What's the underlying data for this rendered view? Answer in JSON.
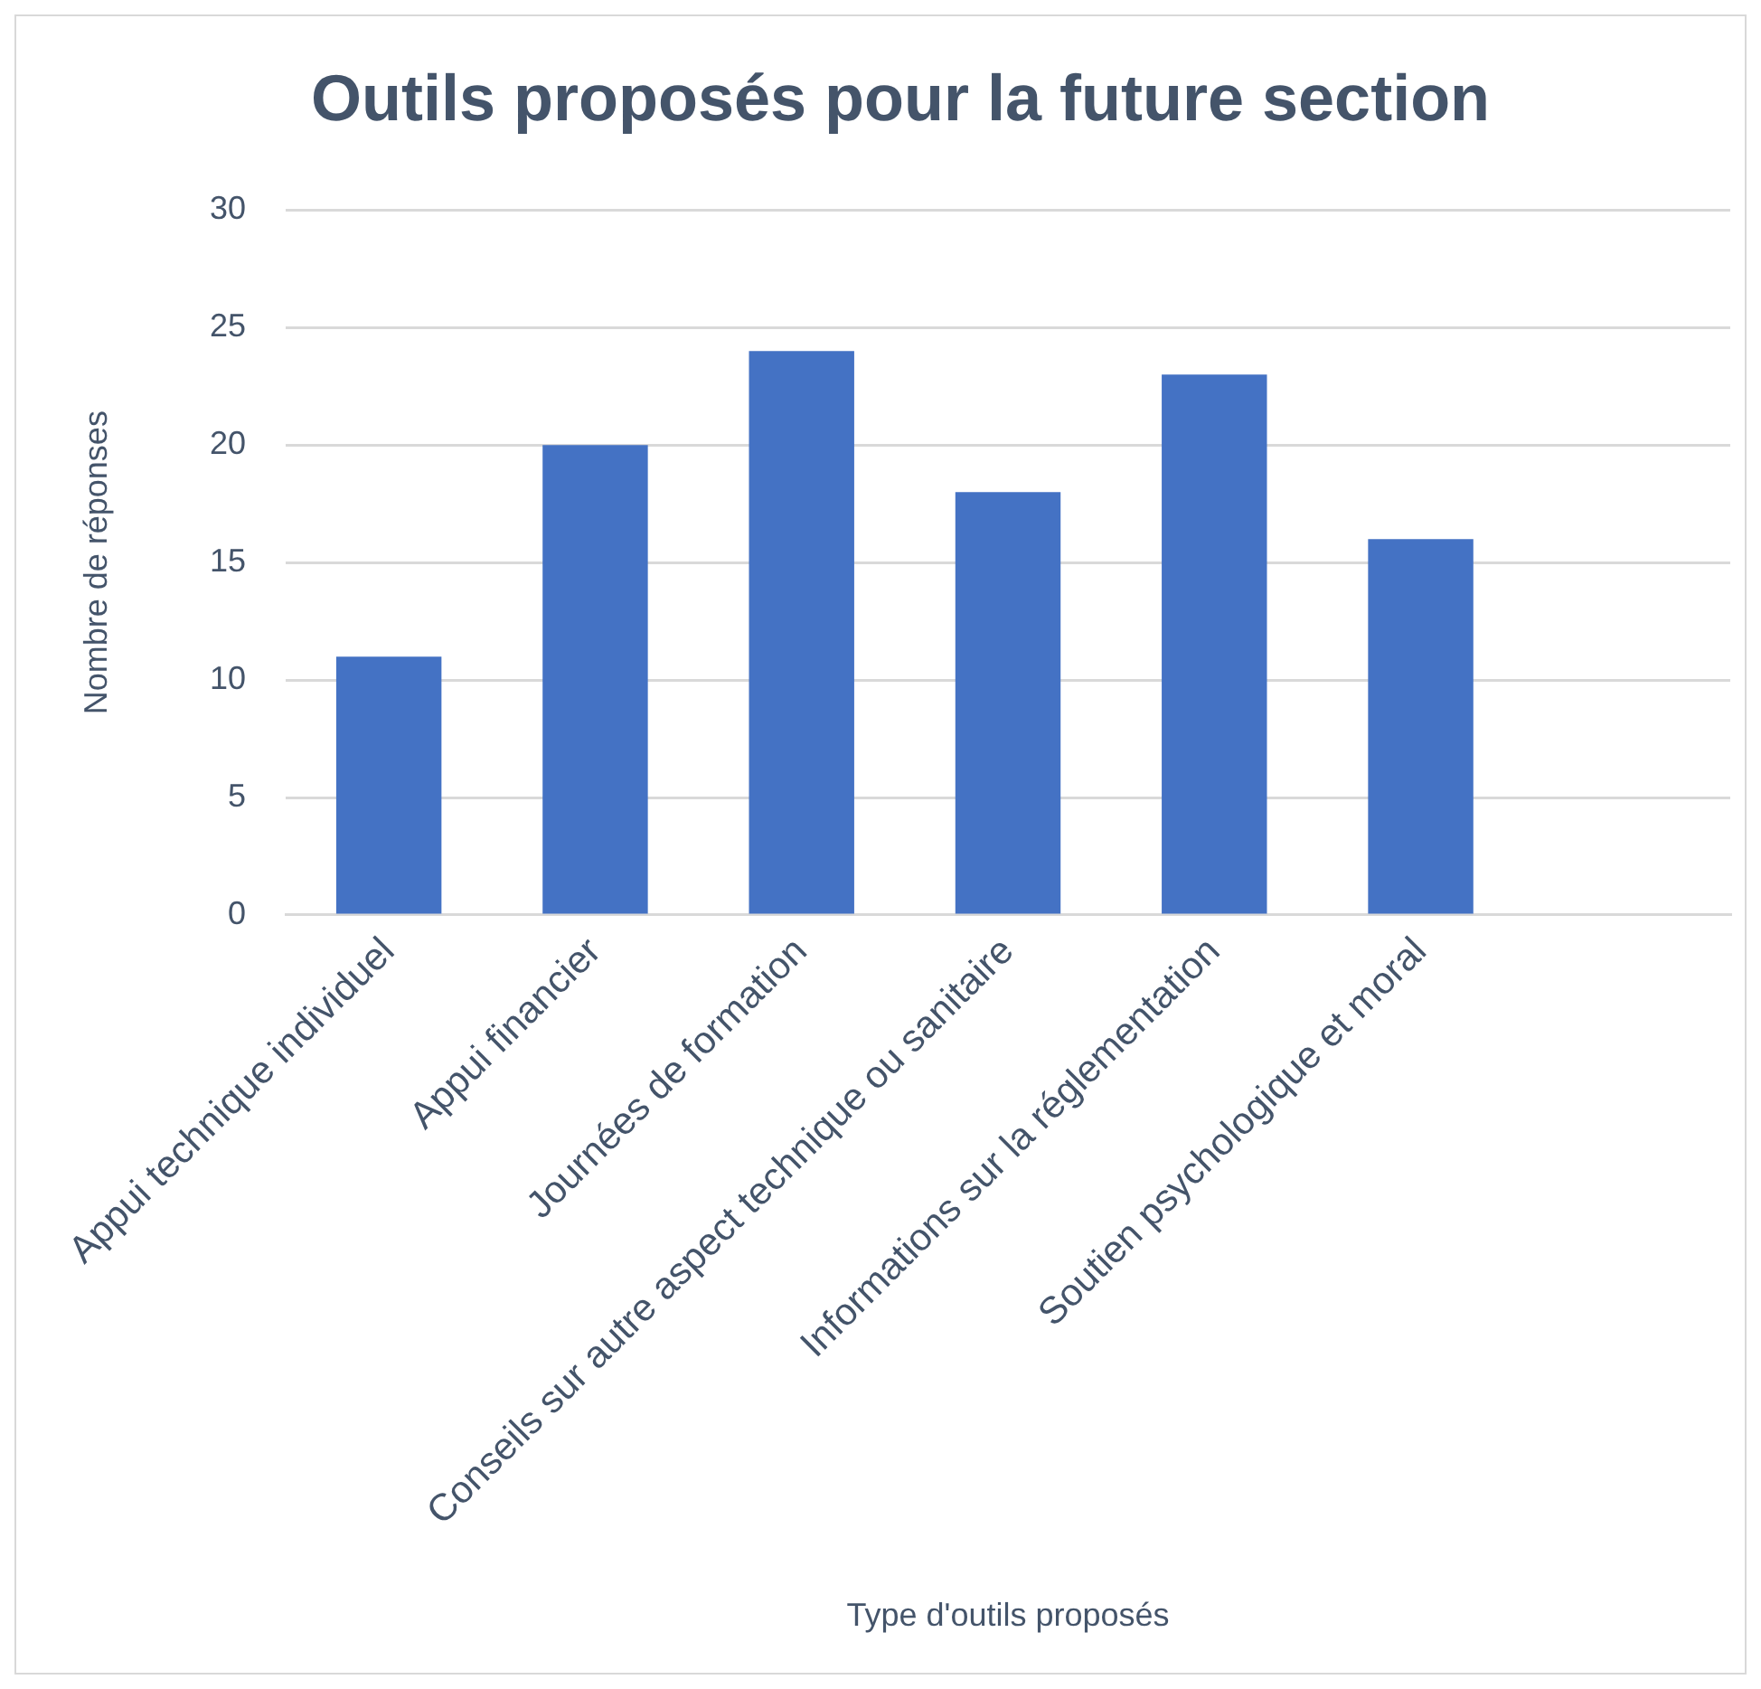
{
  "chart_data": {
    "type": "bar",
    "title": "Outils proposés pour la future section",
    "xlabel": "Type d'outils proposés",
    "ylabel": "Nombre de réponses",
    "categories": [
      "Appui technique individuel",
      "Appui financier",
      "Journées de formation",
      "Conseils sur autre aspect technique ou sanitaire",
      "Informations sur la réglementation",
      "Soutien psychologique et moral",
      null
    ],
    "values": [
      11,
      20,
      24,
      18,
      23,
      16,
      null
    ],
    "color": "#4472c4",
    "ylim": [
      0,
      30
    ],
    "yticks": [
      0,
      5,
      10,
      15,
      20,
      25,
      30
    ],
    "grid": "y"
  }
}
